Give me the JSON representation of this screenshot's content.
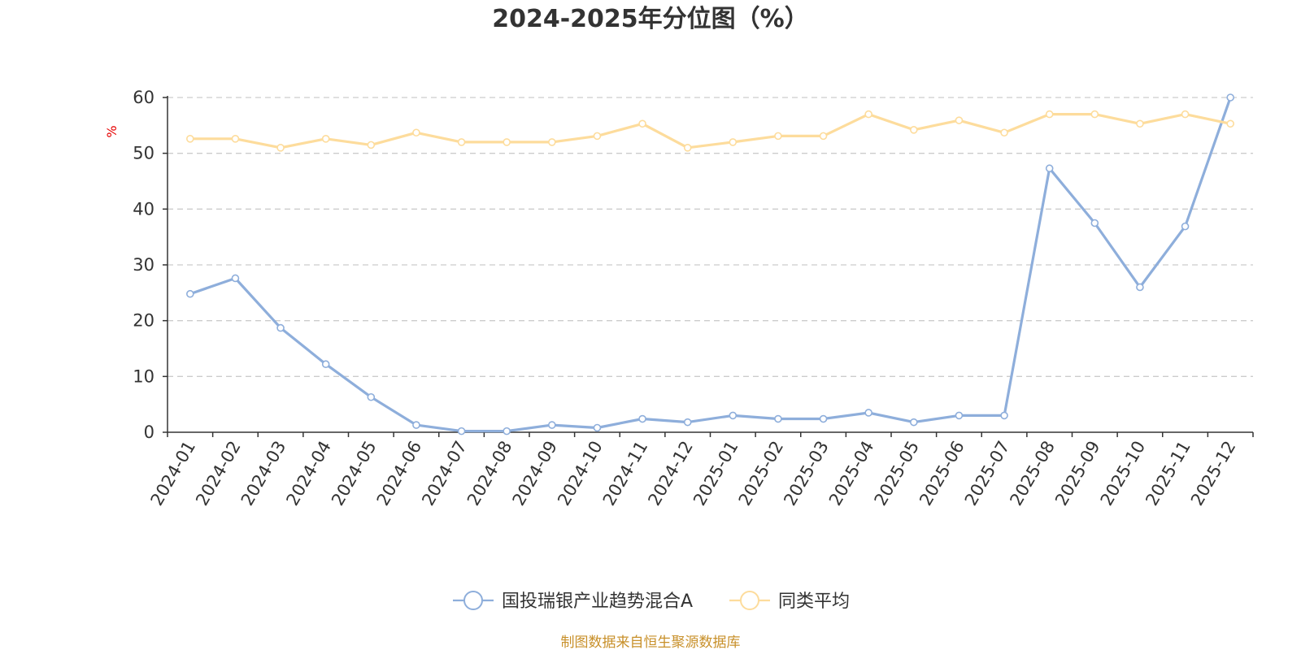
{
  "chart_data": {
    "type": "line",
    "title": "2024-2025年分位图（%）",
    "ylabel": "%",
    "ylim": [
      0,
      60
    ],
    "yticks": [
      0,
      10,
      20,
      30,
      40,
      50,
      60
    ],
    "grid": true,
    "legend_position": "bottom-center",
    "categories": [
      "2024-01",
      "2024-02",
      "2024-03",
      "2024-04",
      "2024-05",
      "2024-06",
      "2024-07",
      "2024-08",
      "2024-09",
      "2024-10",
      "2024-11",
      "2024-12",
      "2025-01",
      "2025-02",
      "2025-03",
      "2025-04",
      "2025-05",
      "2025-06",
      "2025-07",
      "2025-08",
      "2025-09",
      "2025-10",
      "2025-11",
      "2025-12"
    ],
    "series": [
      {
        "name": "国投瑞银产业趋势混合A",
        "color": "#8eaedb",
        "values": [
          24.8,
          27.6,
          18.7,
          12.2,
          6.3,
          1.3,
          0.2,
          0.2,
          1.3,
          0.8,
          2.4,
          1.8,
          3.0,
          2.4,
          2.4,
          3.5,
          1.8,
          3.0,
          3.0,
          47.3,
          37.5,
          26.0,
          36.9,
          60.0
        ]
      },
      {
        "name": "同类平均",
        "color": "#fddc9c",
        "values": [
          52.6,
          52.6,
          51.0,
          52.6,
          51.5,
          53.7,
          52.0,
          52.0,
          52.0,
          53.1,
          55.3,
          51.0,
          52.0,
          53.1,
          53.1,
          57.0,
          54.2,
          55.9,
          53.7,
          57.0,
          57.0,
          55.3,
          57.0,
          55.3
        ]
      }
    ]
  },
  "source": "制图数据来自恒生聚源数据库"
}
